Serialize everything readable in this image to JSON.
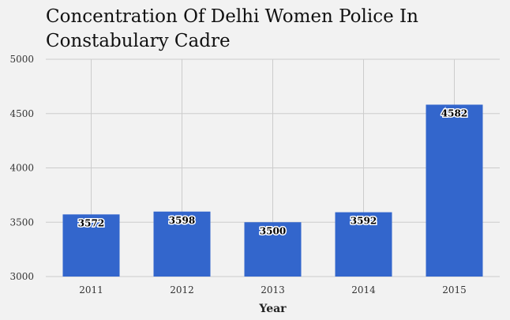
{
  "chart_data": {
    "type": "bar",
    "title": "Concentration Of Delhi Women Police In Constabulary Cadre",
    "xlabel": "Year",
    "ylabel": "",
    "categories": [
      "2011",
      "2012",
      "2013",
      "2014",
      "2015"
    ],
    "values": [
      3572,
      3598,
      3500,
      3592,
      4582
    ],
    "data_labels": [
      "3572",
      "3598",
      "3500",
      "3592",
      "4582"
    ],
    "ylim": [
      3000,
      5000
    ],
    "yticks": [
      3000,
      3500,
      4000,
      4500,
      5000
    ],
    "grid": true,
    "legend": "none",
    "colors": {
      "bar": "#3366cc",
      "grid": "#cccccc",
      "background": "#f2f2f2"
    }
  }
}
